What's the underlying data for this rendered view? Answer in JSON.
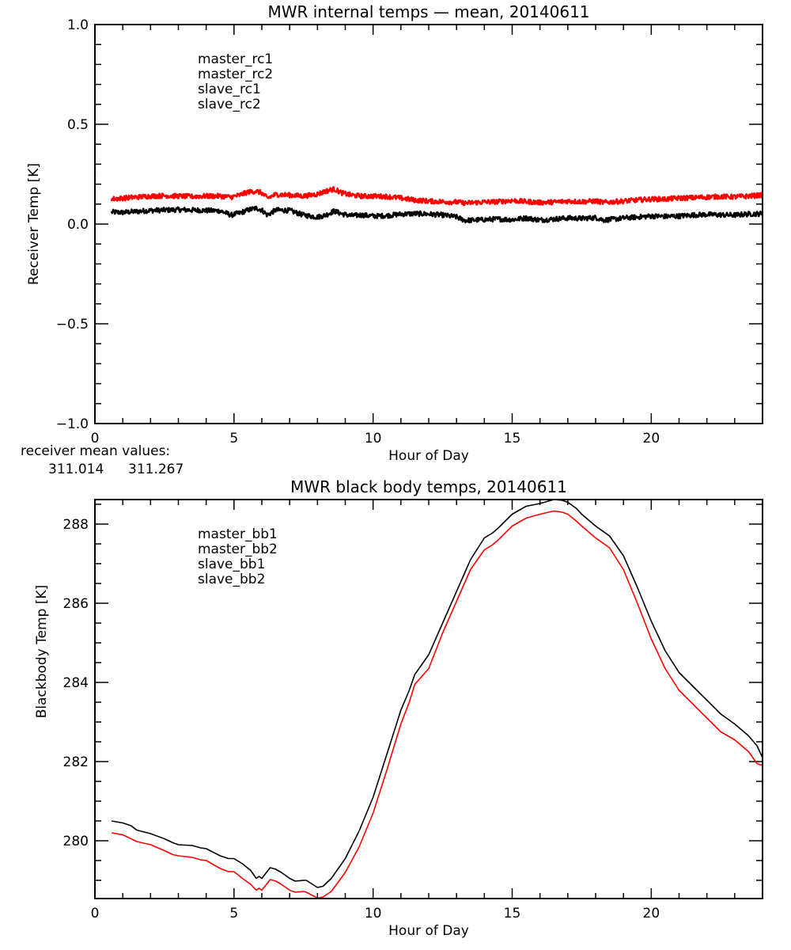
{
  "chart_data": [
    {
      "type": "line",
      "title": "MWR internal temps — mean, 20140611",
      "xlabel": "Hour of Day",
      "ylabel": "Receiver Temp [K]",
      "xlim": [
        0,
        24
      ],
      "ylim": [
        -1.0,
        1.0
      ],
      "x_ticks": [
        0,
        5,
        10,
        15,
        20
      ],
      "x_tick_labels": [
        "0",
        "5",
        "10",
        "15",
        "20"
      ],
      "x_minor_step": 1,
      "y_ticks": [
        -1.0,
        -0.5,
        0.0,
        0.5,
        1.0
      ],
      "y_tick_labels": [
        "−1.0",
        "−0.5",
        "0.0",
        "0.5",
        "1.0"
      ],
      "y_minor_step": 0.1,
      "legend_position": "top-left",
      "grid": false,
      "noise_amplitude": 0.012,
      "series": [
        {
          "name": "master_rc1",
          "color": "#000000",
          "x": [
            0.6,
            1.0,
            1.5,
            2.0,
            2.5,
            3.0,
            3.5,
            4.0,
            4.5,
            4.9,
            5.2,
            5.5,
            5.8,
            6.0,
            6.2,
            6.5,
            7.0,
            7.5,
            8.0,
            8.3,
            8.6,
            8.9,
            9.2,
            9.6,
            10.0,
            10.5,
            11.0,
            11.5,
            12.0,
            12.5,
            13.0,
            13.3,
            13.7,
            14.0,
            14.5,
            15.0,
            15.5,
            16.0,
            16.5,
            17.0,
            17.5,
            18.0,
            18.3,
            18.7,
            19.0,
            19.5,
            20.0,
            20.5,
            21.0,
            21.5,
            22.0,
            22.5,
            23.0,
            23.5,
            24.0
          ],
          "y": [
            0.06,
            0.058,
            0.063,
            0.068,
            0.07,
            0.072,
            0.07,
            0.068,
            0.066,
            0.045,
            0.055,
            0.07,
            0.08,
            0.07,
            0.045,
            0.07,
            0.068,
            0.045,
            0.035,
            0.045,
            0.065,
            0.05,
            0.042,
            0.045,
            0.04,
            0.042,
            0.05,
            0.052,
            0.05,
            0.045,
            0.035,
            0.018,
            0.02,
            0.022,
            0.025,
            0.022,
            0.03,
            0.02,
            0.025,
            0.03,
            0.028,
            0.032,
            0.02,
            0.025,
            0.03,
            0.035,
            0.04,
            0.038,
            0.04,
            0.045,
            0.048,
            0.046,
            0.045,
            0.05,
            0.052
          ]
        },
        {
          "name": "master_rc2",
          "color": "#ff0000",
          "x": [
            0.6,
            1.0,
            1.5,
            2.0,
            2.5,
            3.0,
            3.5,
            4.0,
            4.5,
            4.9,
            5.2,
            5.5,
            5.8,
            6.0,
            6.2,
            6.5,
            7.0,
            7.5,
            8.0,
            8.3,
            8.6,
            8.9,
            9.2,
            9.6,
            10.0,
            10.5,
            11.0,
            11.5,
            12.0,
            12.5,
            13.0,
            13.3,
            13.7,
            14.0,
            14.5,
            15.0,
            15.5,
            16.0,
            16.5,
            17.0,
            17.5,
            18.0,
            18.3,
            18.7,
            19.0,
            19.5,
            20.0,
            20.5,
            21.0,
            21.5,
            22.0,
            22.5,
            23.0,
            23.5,
            24.0
          ],
          "y": [
            0.125,
            0.13,
            0.135,
            0.14,
            0.142,
            0.14,
            0.138,
            0.14,
            0.14,
            0.135,
            0.145,
            0.16,
            0.165,
            0.155,
            0.13,
            0.148,
            0.145,
            0.14,
            0.15,
            0.165,
            0.175,
            0.155,
            0.145,
            0.14,
            0.14,
            0.138,
            0.13,
            0.12,
            0.115,
            0.112,
            0.11,
            0.105,
            0.108,
            0.11,
            0.112,
            0.118,
            0.112,
            0.108,
            0.11,
            0.115,
            0.112,
            0.115,
            0.108,
            0.112,
            0.115,
            0.12,
            0.125,
            0.125,
            0.13,
            0.132,
            0.135,
            0.138,
            0.136,
            0.14,
            0.145
          ]
        },
        {
          "name": "slave_rc1",
          "color": "#2020ff",
          "x": [],
          "y": []
        },
        {
          "name": "slave_rc2",
          "color": "#00ff00",
          "x": [],
          "y": []
        }
      ],
      "annotation": {
        "label": "receiver mean values:",
        "values": [
          {
            "text": "311.014",
            "color": "#000000"
          },
          {
            "text": "311.267",
            "color": "#ff0000"
          }
        ]
      }
    },
    {
      "type": "line",
      "title": "MWR black body temps, 20140611",
      "xlabel": "Hour of Day",
      "ylabel": "Blackbody Temp [K]",
      "xlim": [
        0,
        24
      ],
      "ylim": [
        278.54,
        288.62
      ],
      "x_ticks": [
        0,
        5,
        10,
        15,
        20
      ],
      "x_tick_labels": [
        "0",
        "5",
        "10",
        "15",
        "20"
      ],
      "x_minor_step": 1,
      "y_ticks": [
        280,
        282,
        284,
        286,
        288
      ],
      "y_tick_labels": [
        "280",
        "282",
        "284",
        "286",
        "288"
      ],
      "y_minor_step": 0.5,
      "legend_position": "top-left",
      "grid": false,
      "noise_amplitude": 0,
      "series": [
        {
          "name": "master_bb1",
          "color": "#000000",
          "x": [
            0.6,
            1.0,
            1.3,
            1.5,
            2.0,
            2.5,
            2.8,
            3.0,
            3.5,
            3.8,
            4.0,
            4.5,
            4.8,
            5.0,
            5.3,
            5.6,
            5.8,
            5.9,
            6.0,
            6.3,
            6.5,
            6.7,
            7.0,
            7.2,
            7.5,
            7.6,
            8.0,
            8.2,
            8.5,
            9.0,
            9.5,
            10.0,
            10.5,
            11.0,
            11.3,
            11.5,
            12.0,
            12.5,
            13.0,
            13.5,
            14.0,
            14.3,
            14.5,
            15.0,
            15.5,
            16.0,
            16.5,
            16.8,
            17.0,
            17.3,
            17.5,
            18.0,
            18.5,
            19.0,
            19.5,
            20.0,
            20.5,
            21.0,
            21.5,
            22.0,
            22.5,
            23.0,
            23.5,
            23.8,
            24.0
          ],
          "y": [
            280.5,
            280.45,
            280.38,
            280.27,
            280.18,
            280.05,
            279.95,
            279.9,
            279.88,
            279.82,
            279.8,
            279.62,
            279.55,
            279.55,
            279.42,
            279.25,
            279.05,
            279.1,
            279.05,
            279.32,
            279.28,
            279.2,
            279.05,
            278.98,
            279.0,
            279.0,
            278.82,
            278.85,
            279.05,
            279.55,
            280.25,
            281.1,
            282.2,
            283.3,
            283.8,
            284.2,
            284.7,
            285.5,
            286.3,
            287.1,
            287.65,
            287.78,
            287.9,
            288.25,
            288.45,
            288.52,
            288.62,
            288.6,
            288.55,
            288.4,
            288.25,
            287.95,
            287.7,
            287.2,
            286.4,
            285.55,
            284.8,
            284.25,
            283.9,
            283.55,
            283.2,
            282.95,
            282.65,
            282.4,
            282.1
          ]
        },
        {
          "name": "master_bb2",
          "color": "#ff0000",
          "x": [
            0.6,
            1.0,
            1.3,
            1.5,
            2.0,
            2.5,
            2.8,
            3.0,
            3.5,
            3.8,
            4.0,
            4.5,
            4.8,
            5.0,
            5.3,
            5.6,
            5.8,
            5.9,
            6.0,
            6.3,
            6.5,
            6.7,
            7.0,
            7.2,
            7.5,
            7.6,
            8.0,
            8.2,
            8.5,
            9.0,
            9.5,
            10.0,
            10.5,
            11.0,
            11.3,
            11.5,
            12.0,
            12.5,
            13.0,
            13.5,
            14.0,
            14.3,
            14.5,
            15.0,
            15.5,
            16.0,
            16.5,
            16.8,
            17.0,
            17.3,
            17.5,
            18.0,
            18.5,
            19.0,
            19.5,
            20.0,
            20.5,
            21.0,
            21.5,
            22.0,
            22.5,
            23.0,
            23.5,
            23.8,
            24.0
          ],
          "y": [
            280.2,
            280.15,
            280.05,
            279.98,
            279.9,
            279.75,
            279.65,
            279.62,
            279.58,
            279.52,
            279.5,
            279.3,
            279.22,
            279.22,
            279.05,
            278.9,
            278.75,
            278.8,
            278.75,
            279.02,
            278.98,
            278.9,
            278.75,
            278.7,
            278.72,
            278.7,
            278.55,
            278.58,
            278.72,
            279.2,
            279.85,
            280.7,
            281.8,
            282.95,
            283.5,
            283.95,
            284.35,
            285.25,
            286.05,
            286.85,
            287.35,
            287.48,
            287.6,
            287.95,
            288.15,
            288.25,
            288.33,
            288.3,
            288.25,
            288.08,
            287.95,
            287.65,
            287.4,
            286.85,
            286.0,
            285.1,
            284.35,
            283.8,
            283.45,
            283.1,
            282.75,
            282.55,
            282.25,
            281.95,
            281.9
          ]
        },
        {
          "name": "slave_bb1",
          "color": "#2020ff",
          "x": [],
          "y": []
        },
        {
          "name": "slave_bb2",
          "color": "#00ff00",
          "x": [],
          "y": []
        }
      ]
    }
  ]
}
